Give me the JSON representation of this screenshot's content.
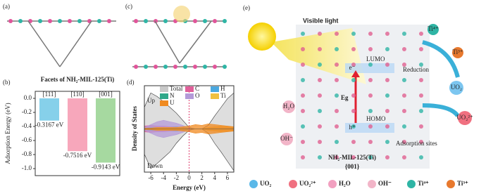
{
  "panel_labels": {
    "a": "(a)",
    "c": "(c)",
    "e": "(e)"
  },
  "chart_data": [
    {
      "type": "bar",
      "panel": "(b)",
      "title": "Facets of NH₂-MIL-125(Ti)",
      "ylabel": "Adsorption Energy (eV)",
      "categories": [
        "[111]",
        "[110]",
        "[001]"
      ],
      "values": [
        -0.3167,
        -0.7516,
        -0.9143
      ],
      "value_labels": [
        "-0.3167 eV",
        "-0.7516 eV",
        "-0.9143 eV"
      ],
      "colors": [
        "#86d0ea",
        "#f7a7bb",
        "#a6d9a0"
      ],
      "ylim": [
        -1.0,
        0
      ],
      "yticks": [
        {
          "value": 0,
          "label": "0.0"
        },
        -0.2,
        -0.4,
        -0.6,
        -0.8,
        {
          "value": -1.0,
          "label": "-1.0"
        }
      ]
    },
    {
      "type": "dos",
      "panel": "(d)",
      "xlabel": "Energy (eV)",
      "ylabel": "Density of States",
      "up_label": "Up",
      "down_label": "Down",
      "x": [
        -7,
        -6,
        -5,
        -4,
        -3,
        -2,
        -1,
        0,
        1,
        2,
        3,
        4,
        5,
        6,
        7
      ],
      "xlim": [
        -7,
        7
      ],
      "xticks": [
        -6,
        -4,
        -2,
        0,
        2,
        4,
        6
      ],
      "ylim": [
        -60,
        60
      ],
      "fermi_level": 0,
      "series": [
        {
          "name": "Total",
          "color": "#c8c8c8",
          "values": [
            30,
            50,
            45,
            38,
            30,
            22,
            12,
            2,
            0,
            0,
            5,
            18,
            30,
            42,
            50
          ],
          "values_down": [
            -35,
            -55,
            -48,
            -40,
            -32,
            -20,
            -10,
            -2,
            0,
            0,
            -6,
            -20,
            -32,
            -45,
            -58
          ]
        },
        {
          "name": "C",
          "color": "#e0609a",
          "values": [
            4,
            5,
            4,
            4,
            3,
            3,
            2,
            1,
            0,
            0,
            2,
            3,
            3,
            3,
            3
          ],
          "values_down": [
            -4,
            -5,
            -4,
            -4,
            -3,
            -3,
            -2,
            -1,
            0,
            0,
            -2,
            -3,
            -3,
            -3,
            -3
          ]
        },
        {
          "name": "H",
          "color": "#4aa8e0",
          "values": [
            1,
            1,
            1,
            1,
            1,
            1,
            0,
            0,
            0,
            0,
            0,
            0,
            0,
            0,
            0
          ],
          "values_down": [
            -1,
            -1,
            -1,
            -1,
            -1,
            -1,
            0,
            0,
            0,
            0,
            0,
            0,
            0,
            0,
            0
          ]
        },
        {
          "name": "N",
          "color": "#2fa88a",
          "values": [
            1,
            2,
            2,
            2,
            2,
            3,
            2,
            1,
            0,
            0,
            0,
            1,
            1,
            1,
            1
          ],
          "values_down": [
            -1,
            -2,
            -2,
            -2,
            -2,
            -3,
            -2,
            -1,
            0,
            0,
            0,
            -1,
            -1,
            -1,
            -1
          ]
        },
        {
          "name": "O",
          "color": "#b49ad8",
          "values": [
            2,
            6,
            10,
            12,
            10,
            8,
            5,
            1,
            0,
            0,
            1,
            2,
            2,
            2,
            2
          ],
          "values_down": [
            -2,
            -6,
            -10,
            -12,
            -10,
            -8,
            -5,
            -1,
            0,
            0,
            -1,
            -2,
            -2,
            -2,
            -2
          ]
        },
        {
          "name": "Ti",
          "color": "#f0c040",
          "values": [
            0,
            0,
            1,
            1,
            1,
            1,
            1,
            0,
            0,
            0,
            2,
            3,
            4,
            3,
            3
          ],
          "values_down": [
            0,
            0,
            -1,
            -1,
            -1,
            -1,
            -1,
            0,
            0,
            0,
            -2,
            -3,
            -4,
            -3,
            -3
          ]
        },
        {
          "name": "U",
          "color": "#f08a20",
          "values": [
            1,
            1,
            2,
            2,
            2,
            2,
            3,
            4,
            6,
            5,
            7,
            6,
            5,
            4,
            3
          ],
          "values_down": [
            -1,
            -1,
            -2,
            -2,
            -2,
            -2,
            -3,
            -4,
            -6,
            -5,
            -7,
            -6,
            -5,
            -4,
            -3
          ]
        }
      ]
    }
  ],
  "diagram": {
    "light": "Visible light",
    "lumo": "LUMO",
    "homo": "HOMO",
    "gap": "Eg",
    "reduction": "Reduction",
    "sites": "Adsorption sites",
    "material": "NH₂-MIL-125(Ti)",
    "facet": "{001}",
    "water": "H₂O",
    "hydroxide": "OH⁻",
    "uranyl_product": "UO₂",
    "ti4": "Ti⁴⁺",
    "ti3": "Ti³⁺",
    "uranyl": "UO₂²⁺",
    "electron": "e⁻",
    "hole": "h⁺"
  },
  "legend": [
    "UO₂",
    "UO₂²⁺",
    "H₂O",
    "OH⁻",
    "Ti⁴⁺",
    "Ti³⁺"
  ]
}
